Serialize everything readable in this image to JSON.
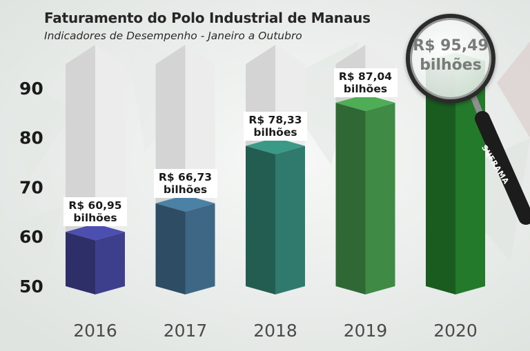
{
  "title": "Faturamento do Polo Industrial de Manaus",
  "subtitle": "Indicadores de Desempenho - Janeiro a Outubro",
  "colors": {
    "bar_2016": "#3d3f8c",
    "bar_2017": "#3d6785",
    "bar_2018": "#2f7a6c",
    "bar_2019": "#3f8a45",
    "bar_2020": "#237a2a",
    "track": "#ececec"
  },
  "magnifier": {
    "value": "R$ 95,49",
    "unit": "bilhões"
  },
  "brand": "SUFRAMA",
  "chart_data": {
    "type": "bar",
    "categories": [
      "2016",
      "2017",
      "2018",
      "2019",
      "2020"
    ],
    "values": [
      60.95,
      66.73,
      78.33,
      87.04,
      95.49
    ],
    "value_labels": [
      [
        "R$ 60,95",
        "bilhões"
      ],
      [
        "R$ 66,73",
        "bilhões"
      ],
      [
        "R$ 78,33",
        "bilhões"
      ],
      [
        "R$ 87,04",
        "bilhões"
      ],
      [
        "R$ 95,49",
        "bilhões"
      ]
    ],
    "yticks": [
      50,
      60,
      70,
      80,
      90
    ],
    "ylim": [
      50,
      95.5
    ],
    "grid": false,
    "legend": "none"
  }
}
